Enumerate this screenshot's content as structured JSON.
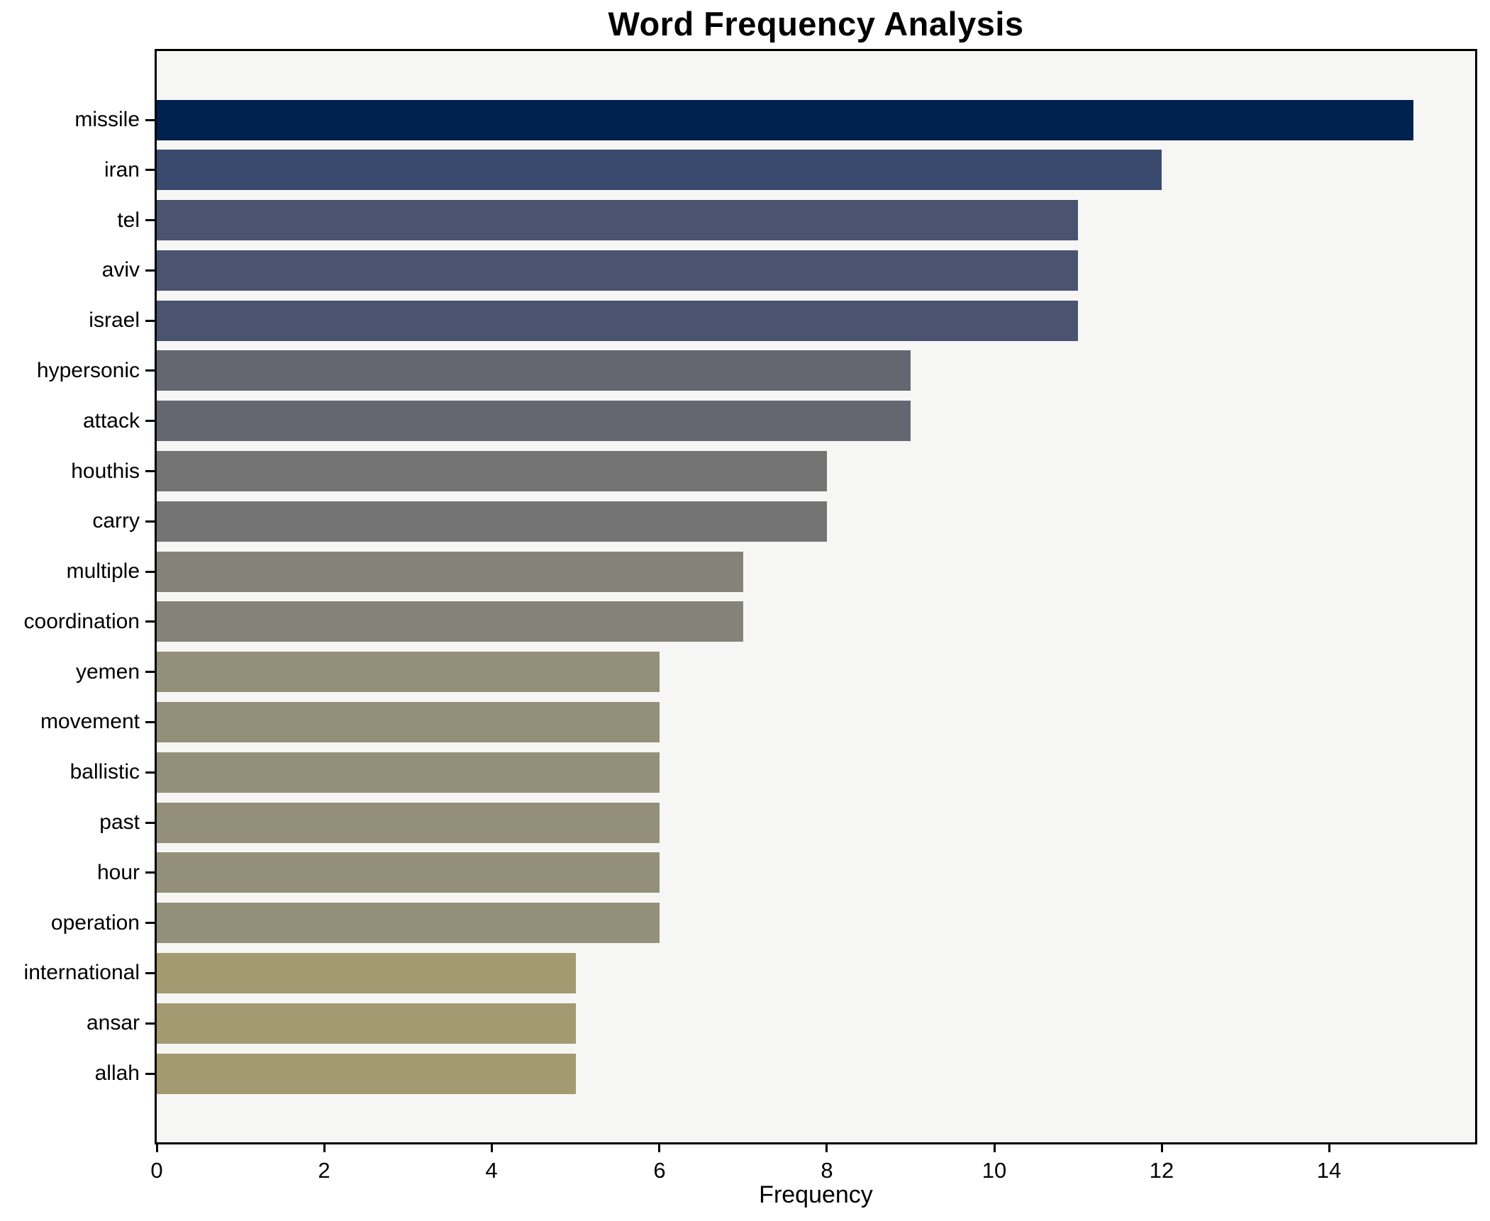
{
  "title": "Word Frequency Analysis",
  "xlabel": "Frequency",
  "chart_data": {
    "type": "bar",
    "orientation": "horizontal",
    "title": "Word Frequency Analysis",
    "xlabel": "Frequency",
    "ylabel": "",
    "categories": [
      "missile",
      "iran",
      "tel",
      "aviv",
      "israel",
      "hypersonic",
      "attack",
      "houthis",
      "carry",
      "multiple",
      "coordination",
      "yemen",
      "movement",
      "ballistic",
      "past",
      "hour",
      "operation",
      "international",
      "ansar",
      "allah"
    ],
    "values": [
      15,
      12,
      11,
      11,
      11,
      9,
      9,
      8,
      8,
      7,
      7,
      6,
      6,
      6,
      6,
      6,
      6,
      5,
      5,
      5
    ],
    "bar_colors": [
      "#00224e",
      "#3a4a6e",
      "#4a5471",
      "#4a5471",
      "#4a5471",
      "#646770",
      "#646770",
      "#747474",
      "#747474",
      "#858379",
      "#858379",
      "#948f78",
      "#948f78",
      "#948f78",
      "#948f78",
      "#948f78",
      "#948f78",
      "#a39a71",
      "#a39a71",
      "#a39a71"
    ],
    "xlim": [
      0,
      15.74
    ],
    "xticks": [
      0,
      2,
      4,
      6,
      8,
      10,
      12,
      14
    ],
    "grid": false,
    "legend": null,
    "plot_bg": "#f6f6f5",
    "fig_bg": "#ffffff",
    "spine_color": "#000000",
    "text_color": "#000000"
  }
}
